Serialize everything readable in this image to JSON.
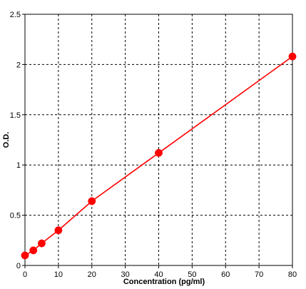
{
  "chart_data": {
    "type": "line",
    "title": "",
    "xlabel": "Concentration (pg/ml)",
    "ylabel": "O.D.",
    "xlim": [
      0,
      80
    ],
    "ylim": [
      0,
      2.5
    ],
    "xticks": [
      0,
      10,
      20,
      30,
      40,
      50,
      60,
      70,
      80
    ],
    "xtick_labels": [
      "0",
      "10",
      "20",
      "30",
      "40",
      "50",
      "60",
      "70",
      "80"
    ],
    "yticks": [
      0,
      0.5,
      1,
      1.5,
      2,
      2.5
    ],
    "ytick_labels": [
      "0",
      "0.5",
      "1",
      "1.5",
      "2",
      "2.5"
    ],
    "grid": true,
    "legend": "none",
    "series": [
      {
        "x": [
          0,
          2.5,
          5,
          10,
          20,
          40,
          80
        ],
        "y": [
          0.1,
          0.15,
          0.22,
          0.35,
          0.64,
          1.12,
          2.08
        ],
        "color": "#ff0000",
        "marker": "circle",
        "line_style": "solid"
      }
    ]
  }
}
